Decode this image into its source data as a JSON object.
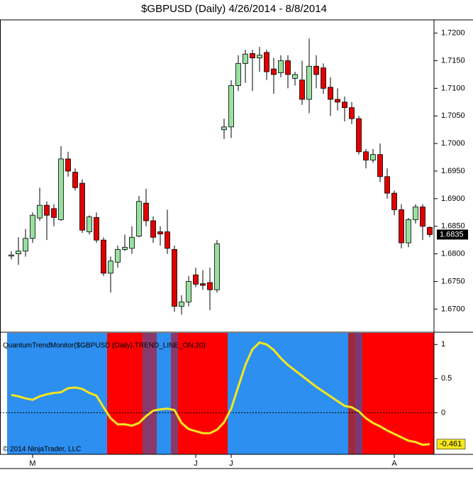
{
  "chart_data": [
    {
      "type": "candlestick",
      "title": "$GBPUSD (Daily)  4/26/2014 - 8/8/2014",
      "categories": [
        null,
        null,
        null,
        "M",
        null,
        null,
        null,
        null,
        null,
        null,
        null,
        null,
        null,
        null,
        null,
        null,
        null,
        null,
        null,
        null,
        null,
        null,
        null,
        null,
        null,
        null,
        "J",
        null,
        null,
        null,
        null,
        "J",
        null,
        null,
        null,
        null,
        null,
        null,
        null,
        null,
        null,
        null,
        null,
        null,
        null,
        null,
        null,
        null,
        null,
        null,
        null,
        null,
        null,
        null,
        "A",
        null,
        null,
        null,
        null,
        null
      ],
      "open": [
        1.6796,
        1.68,
        1.6805,
        1.6828,
        1.6865,
        1.6888,
        1.6882,
        1.6862,
        1.6972,
        1.6948,
        1.6928,
        1.684,
        1.6866,
        1.6825,
        1.6765,
        1.6785,
        1.6808,
        1.681,
        1.6832,
        1.6892,
        1.686,
        1.684,
        1.684,
        1.6808,
        1.6705,
        1.6713,
        1.6762,
        1.6746,
        1.6748,
        1.6735,
        1.7025,
        1.703,
        1.7105,
        1.7145,
        1.7163,
        1.7155,
        1.7165,
        1.7135,
        1.7128,
        1.715,
        1.7118,
        1.7115,
        1.708,
        1.714,
        1.7137,
        1.7102,
        1.708,
        1.7075,
        1.7065,
        1.7045,
        1.6985,
        1.697,
        1.698,
        1.694,
        1.691,
        1.688,
        1.682,
        1.6862,
        1.6885,
        1.6848
      ],
      "high": [
        1.6805,
        1.683,
        1.6845,
        1.6875,
        1.692,
        1.6895,
        1.689,
        1.6995,
        1.6985,
        1.6955,
        1.6935,
        1.687,
        1.6875,
        1.683,
        1.6795,
        1.6815,
        1.6835,
        1.685,
        1.6905,
        1.6918,
        1.6868,
        1.685,
        1.688,
        1.6815,
        1.6725,
        1.676,
        1.6775,
        1.677,
        1.6775,
        1.6825,
        1.7045,
        1.7115,
        1.716,
        1.717,
        1.717,
        1.7175,
        1.717,
        1.7155,
        1.716,
        1.716,
        1.713,
        1.715,
        1.719,
        1.716,
        1.7145,
        1.712,
        1.71,
        1.7085,
        1.7075,
        1.705,
        1.699,
        1.699,
        1.7,
        1.6955,
        1.6915,
        1.689,
        1.6865,
        1.689,
        1.689,
        1.685
      ],
      "low": [
        1.679,
        1.678,
        1.6795,
        1.682,
        1.686,
        1.6825,
        1.685,
        1.686,
        1.694,
        1.6915,
        1.6838,
        1.6835,
        1.682,
        1.676,
        1.673,
        1.6775,
        1.6805,
        1.68,
        1.683,
        1.685,
        1.682,
        1.6815,
        1.68,
        1.6695,
        1.669,
        1.6705,
        1.674,
        1.6735,
        1.6698,
        1.673,
        1.7008,
        1.701,
        1.7095,
        1.711,
        1.7095,
        1.713,
        1.7115,
        1.709,
        1.712,
        1.71,
        1.7105,
        1.707,
        1.7055,
        1.71,
        1.709,
        1.705,
        1.706,
        1.704,
        1.7035,
        1.698,
        1.6955,
        1.6965,
        1.693,
        1.69,
        1.687,
        1.681,
        1.6812,
        1.6855,
        1.6825,
        1.683
      ],
      "close": [
        1.6798,
        1.6805,
        1.6828,
        1.687,
        1.6888,
        1.687,
        1.6866,
        1.6972,
        1.695,
        1.692,
        1.6843,
        1.6867,
        1.6825,
        1.6765,
        1.6787,
        1.6808,
        1.6812,
        1.683,
        1.6895,
        1.686,
        1.683,
        1.6836,
        1.681,
        1.6705,
        1.6713,
        1.675,
        1.6745,
        1.6743,
        1.6735,
        1.6818,
        1.703,
        1.7105,
        1.7145,
        1.7162,
        1.7155,
        1.716,
        1.713,
        1.7125,
        1.715,
        1.7125,
        1.7125,
        1.708,
        1.714,
        1.7125,
        1.71,
        1.708,
        1.7075,
        1.7065,
        1.7045,
        1.6985,
        1.697,
        1.698,
        1.694,
        1.691,
        1.688,
        1.682,
        1.6862,
        1.6885,
        1.685,
        1.6835
      ],
      "up_color": "#98e0a0",
      "down_color": "#e00000",
      "ylim": [
        1.6658,
        1.7224
      ],
      "yticks": [
        {
          "value": 1.67,
          "label": "1.6700"
        },
        {
          "value": 1.675,
          "label": "1.6750"
        },
        {
          "value": 1.68,
          "label": "1.6800"
        },
        {
          "value": 1.685,
          "label": "1.6850"
        },
        {
          "value": 1.69,
          "label": "1.6900"
        },
        {
          "value": 1.695,
          "label": "1.6950"
        },
        {
          "value": 1.7,
          "label": "1.7000"
        },
        {
          "value": 1.705,
          "label": "1.7050"
        },
        {
          "value": 1.71,
          "label": "1.7100"
        },
        {
          "value": 1.715,
          "label": "1.7150"
        },
        {
          "value": 1.72,
          "label": "1.7200"
        }
      ]
    },
    {
      "type": "line",
      "title": "QuantumTrendMonitor($GBPUSD (Daily),TREND_LINE_ON,20)",
      "annotation": "© 2014 NinjaTrader, LLC",
      "values": [
        0.26,
        0.24,
        0.21,
        0.19,
        0.24,
        0.27,
        0.29,
        0.3,
        0.36,
        0.37,
        0.35,
        0.29,
        0.25,
        0.08,
        -0.08,
        -0.17,
        -0.17,
        -0.19,
        -0.15,
        -0.05,
        0.03,
        0.05,
        0.06,
        0.04,
        -0.15,
        -0.24,
        -0.27,
        -0.3,
        -0.3,
        -0.25,
        -0.14,
        0.06,
        0.38,
        0.7,
        0.93,
        1.03,
        1.0,
        0.92,
        0.8,
        0.7,
        0.62,
        0.54,
        0.46,
        0.38,
        0.31,
        0.24,
        0.17,
        0.1,
        0.08,
        0.02,
        -0.08,
        -0.15,
        -0.2,
        -0.26,
        -0.31,
        -0.36,
        -0.41,
        -0.43,
        -0.47,
        -0.461
      ],
      "color": "#f5e61e",
      "zone_colors": [
        "#2d8fef",
        "#2d8fef",
        "#2d8fef",
        "#2d8fef",
        "#2d8fef",
        "#2d8fef",
        "#2d8fef",
        "#2d8fef",
        "#2d8fef",
        "#2d8fef",
        "#2d8fef",
        "#2d8fef",
        "#2d8fef",
        "#2d8fef",
        "#ff0000",
        "#ff0000",
        "#ff0000",
        "#ff0000",
        "#ff0000",
        "#8a3a6a",
        "#8a3a6a",
        "#2d8fef",
        "#2d8fef",
        "#8a3a6a",
        "#ff0000",
        "#ff0000",
        "#ff0000",
        "#ff0000",
        "#ff0000",
        "#ff0000",
        "#ff0000",
        "#2d8fef",
        "#2d8fef",
        "#2d8fef",
        "#2d8fef",
        "#2d8fef",
        "#2d8fef",
        "#2d8fef",
        "#2d8fef",
        "#2d8fef",
        "#2d8fef",
        "#2d8fef",
        "#2d8fef",
        "#2d8fef",
        "#2d8fef",
        "#2d8fef",
        "#2d8fef",
        "#2d8fef",
        "#a02a3a",
        "#7a3a7a",
        "#ff0000",
        "#ff0000",
        "#ff0000",
        "#ff0000",
        "#ff0000",
        "#ff0000",
        "#ff0000",
        "#ff0000",
        "#ff0000",
        "#ff0000"
      ],
      "ylim": [
        -0.61,
        1.18
      ],
      "yticks": [
        0,
        0.5,
        1
      ],
      "zero_line": true
    }
  ]
}
